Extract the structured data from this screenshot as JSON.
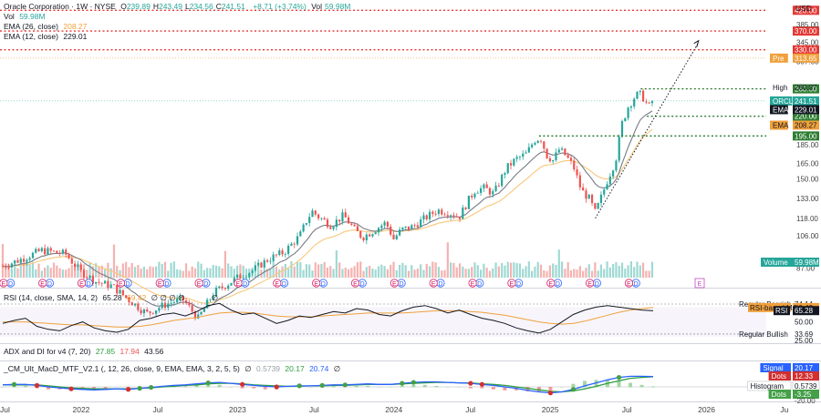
{
  "header": {
    "title": "Oracle Corporation · 1W · NYSE",
    "ohlc": [
      {
        "k": "O",
        "v": "239.89"
      },
      {
        "k": "H",
        "v": "243.49"
      },
      {
        "k": "L",
        "v": "234.56"
      },
      {
        "k": "C",
        "v": "241.51"
      }
    ],
    "change": "+8.71 (+3.74%)",
    "vol_label": "Vol",
    "vol_value": "59.98M",
    "vol_row_label": "Vol",
    "ema26_label": "EMA (26, close)",
    "ema26_value": "208.27",
    "ema12_label": "EMA (12, close)",
    "ema12_value": "229.01"
  },
  "currency": "USD",
  "colors": {
    "up": "#26a69a",
    "down": "#ef5350",
    "ema12": "#787b86",
    "ema26": "#f7c87a",
    "resistance": "#e53935",
    "support": "#2e7d32",
    "pre": "#f0a03c",
    "rsi": "#131722",
    "rsi_ma": "#f0a03c",
    "macd": "#2962ff",
    "signal": "#2e9e3e",
    "macd_dot_up": "#43a047",
    "macd_dot_down": "#d32f2f",
    "volume_label_bg": "#26a69a",
    "label_dark": "#131722"
  },
  "chart_data": {
    "type": "candlestick",
    "symbol": "ORCL",
    "interval": "1W",
    "exchange": "NYSE",
    "y_scale": "log",
    "y_ticks": [
      "385.00",
      "345.00",
      "307.00",
      "185.00",
      "165.00",
      "150.00",
      "133.00",
      "118.00",
      "106.00",
      "87.00"
    ],
    "x_ticks": [
      "Jul",
      "2022",
      "Jul",
      "2023",
      "Jul",
      "2024",
      "Jul",
      "2025",
      "Jul",
      "2026",
      "Ju"
    ],
    "x_ticks_t": [
      2021.5,
      2022.0,
      2022.5,
      2023.0,
      2023.5,
      2024.0,
      2024.5,
      2025.0,
      2025.5,
      2026.0,
      2026.5
    ],
    "x_range": [
      2021.5,
      2026.5
    ],
    "price_path": [
      [
        2021.5,
        88
      ],
      [
        2021.62,
        92
      ],
      [
        2021.75,
        97
      ],
      [
        2021.9,
        95
      ],
      [
        2022.0,
        85
      ],
      [
        2022.1,
        80
      ],
      [
        2022.2,
        78
      ],
      [
        2022.3,
        72
      ],
      [
        2022.42,
        66
      ],
      [
        2022.55,
        70
      ],
      [
        2022.65,
        72
      ],
      [
        2022.75,
        64
      ],
      [
        2022.85,
        75
      ],
      [
        2023.0,
        82
      ],
      [
        2023.1,
        86
      ],
      [
        2023.2,
        92
      ],
      [
        2023.3,
        96
      ],
      [
        2023.4,
        106
      ],
      [
        2023.45,
        118
      ],
      [
        2023.48,
        123
      ],
      [
        2023.52,
        119
      ],
      [
        2023.6,
        113
      ],
      [
        2023.68,
        120
      ],
      [
        2023.75,
        110
      ],
      [
        2023.8,
        105
      ],
      [
        2023.88,
        110
      ],
      [
        2023.95,
        115
      ],
      [
        2024.0,
        104
      ],
      [
        2024.05,
        110
      ],
      [
        2024.12,
        112
      ],
      [
        2024.2,
        118
      ],
      [
        2024.28,
        124
      ],
      [
        2024.36,
        122
      ],
      [
        2024.42,
        119
      ],
      [
        2024.48,
        132
      ],
      [
        2024.52,
        140
      ],
      [
        2024.58,
        142
      ],
      [
        2024.64,
        137
      ],
      [
        2024.72,
        160
      ],
      [
        2024.78,
        169
      ],
      [
        2024.85,
        175
      ],
      [
        2024.9,
        190
      ],
      [
        2024.94,
        193
      ],
      [
        2024.98,
        173
      ],
      [
        2025.02,
        168
      ],
      [
        2025.06,
        180
      ],
      [
        2025.1,
        173
      ],
      [
        2025.15,
        162
      ],
      [
        2025.2,
        140
      ],
      [
        2025.25,
        133
      ],
      [
        2025.29,
        122
      ],
      [
        2025.33,
        135
      ],
      [
        2025.37,
        150
      ],
      [
        2025.42,
        168
      ],
      [
        2025.46,
        210
      ],
      [
        2025.5,
        233
      ],
      [
        2025.54,
        247
      ],
      [
        2025.57,
        253
      ],
      [
        2025.6,
        245
      ],
      [
        2025.63,
        232
      ],
      [
        2025.66,
        241.51
      ]
    ],
    "price_levels": [
      {
        "value": 420,
        "label": "420.00",
        "kind": "resistance"
      },
      {
        "value": 370,
        "label": "370.00",
        "kind": "resistance"
      },
      {
        "value": 330,
        "label": "330.00",
        "kind": "resistance"
      },
      {
        "value": 260,
        "label": "260.00",
        "kind": "support"
      },
      {
        "value": 220,
        "label": "220.00",
        "kind": "support"
      },
      {
        "value": 195,
        "label": "195.00",
        "kind": "support"
      }
    ],
    "pre": {
      "label": "Pre",
      "value": 313.65,
      "text": "313.65"
    },
    "high": {
      "label": "High",
      "value": 260.87,
      "text": "260.87"
    },
    "last": {
      "label": "ORCL",
      "value": 241.51,
      "text": "241.51"
    },
    "ema12_tag": {
      "label": "EMA",
      "value": 229.01,
      "text": "229.01"
    },
    "ema26_tag": {
      "label": "EMA",
      "value": 208.27,
      "text": "208.27"
    },
    "volume_tag": {
      "label": "Volume",
      "text": "59.98M"
    },
    "trend_line": [
      [
        2025.29,
        118
      ],
      [
        2025.95,
        345
      ]
    ]
  },
  "rsi": {
    "legend": "RSI (14, close, SMA, 14, 2)",
    "value": "65.28",
    "ma_value": "69.42",
    "zeros": "∅ ∅ ∅ ∅",
    "extra_zero": "∅",
    "ticks": [
      "74.14",
      "50.00",
      "33.69",
      "25.00"
    ],
    "tags": [
      {
        "label": "Regular Bearish",
        "text": "74.14"
      },
      {
        "label": "RSI-based MA",
        "text": "69.42"
      },
      {
        "label": "RSI",
        "text": "65.28"
      },
      {
        "label": "",
        "text": "50.00"
      },
      {
        "label": "Regular Bullish",
        "text": "33.69"
      },
      {
        "label": "",
        "text": "25.00"
      }
    ],
    "series": [
      48,
      52,
      55,
      44,
      40,
      38,
      45,
      50,
      42,
      38,
      36,
      40,
      52,
      55,
      60,
      62,
      58,
      64,
      72,
      75,
      66,
      60,
      62,
      55,
      48,
      52,
      58,
      56,
      60,
      64,
      62,
      68,
      66,
      60,
      58,
      65,
      70,
      72,
      68,
      62,
      66,
      60,
      55,
      52,
      48,
      42,
      38,
      35,
      40,
      50,
      60,
      66,
      70,
      72,
      70,
      68,
      66,
      65
    ],
    "ma_series": [
      50,
      50,
      50,
      49,
      48,
      47,
      46,
      46,
      45,
      44,
      43,
      43,
      44,
      46,
      49,
      52,
      54,
      56,
      59,
      62,
      63,
      63,
      62,
      60,
      58,
      57,
      57,
      57,
      58,
      59,
      60,
      61,
      62,
      62,
      62,
      62,
      63,
      64,
      65,
      65,
      65,
      64,
      63,
      61,
      59,
      56,
      53,
      50,
      48,
      47,
      48,
      51,
      55,
      59,
      63,
      66,
      68,
      69.42
    ]
  },
  "adx": {
    "legend": "ADX and DI for v4 (7, 20)",
    "v1": "27.85",
    "v2": "17.94",
    "v3": "43.56"
  },
  "macd": {
    "legend": "_CM_Ult_MacD_MTF_V2.1 (, 12, 26, close, 9, EMA, EMA, 3, 2, 5, 5)",
    "values": [
      "0.5739",
      "20.17",
      "20.74"
    ],
    "zero": "∅",
    "tags": [
      {
        "label": "Signal",
        "text": "20.17"
      },
      {
        "label": "Dots",
        "text": "12.33"
      },
      {
        "label": "Histogram",
        "text": "0.5739"
      },
      {
        "label": "Dots",
        "text": "-3.25"
      }
    ],
    "tick": "-20.00",
    "macd_series": [
      4,
      5,
      5,
      3,
      0,
      -2,
      -4,
      -5,
      -6,
      -5,
      -4,
      -5,
      -3,
      -1,
      1,
      3,
      4,
      6,
      8,
      9,
      7,
      5,
      3,
      1,
      0,
      1,
      2,
      2,
      3,
      4,
      4,
      5,
      6,
      5,
      5,
      7,
      9,
      10,
      10,
      9,
      8,
      7,
      5,
      3,
      0,
      -3,
      -7,
      -10,
      -12,
      -10,
      -5,
      2,
      8,
      14,
      19,
      21,
      21,
      20.74
    ],
    "signal_series": [
      4,
      4,
      4,
      4,
      2,
      0,
      -2,
      -3,
      -4,
      -4,
      -4,
      -4,
      -3,
      -2,
      0,
      1,
      3,
      4,
      6,
      7,
      7,
      6,
      4,
      3,
      2,
      1,
      1,
      2,
      2,
      3,
      3,
      4,
      5,
      5,
      5,
      6,
      7,
      8,
      9,
      9,
      8,
      8,
      6,
      5,
      3,
      0,
      -3,
      -6,
      -9,
      -10,
      -8,
      -4,
      1,
      7,
      12,
      17,
      19,
      20.17
    ]
  },
  "event_markers": [
    "D",
    "E"
  ]
}
